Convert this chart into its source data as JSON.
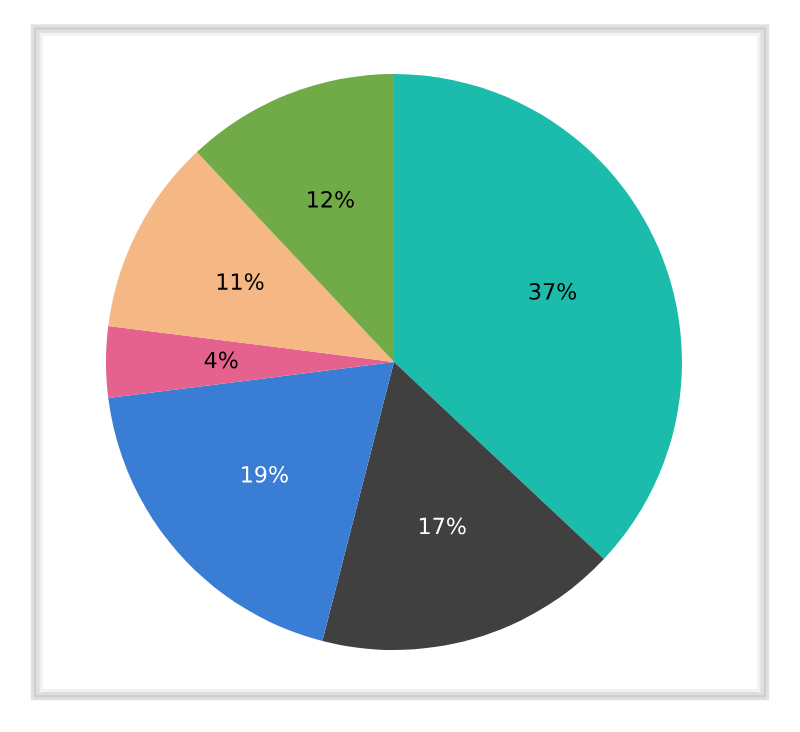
{
  "chart_data": {
    "type": "pie",
    "categories": [
      null,
      null,
      null,
      null,
      null,
      null
    ],
    "values": [
      37,
      17,
      19,
      4,
      11,
      12
    ],
    "colors": [
      "#1bbcac",
      "#404040",
      "#3a7dd4",
      "#e6628e",
      "#f5b783",
      "#71ab47"
    ],
    "value_labels": [
      "37%",
      "17%",
      "19%",
      "4%",
      "11%",
      "12%"
    ]
  }
}
